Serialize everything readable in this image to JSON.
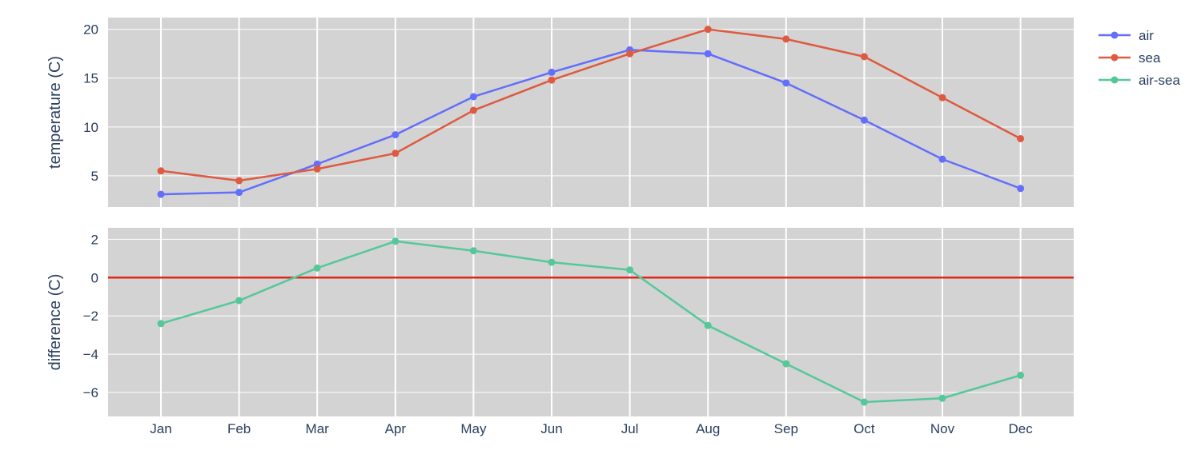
{
  "colors": {
    "plot_bg": "#d3d3d3",
    "grid": "#ffffff",
    "text": "#2a3f5f",
    "zero_line": "#e0281a"
  },
  "chart_data": [
    {
      "type": "line",
      "panel": "top",
      "ylabel": "temperature (C)",
      "categories": [
        "Jan",
        "Feb",
        "Mar",
        "Apr",
        "May",
        "Jun",
        "Jul",
        "Aug",
        "Sep",
        "Oct",
        "Nov",
        "Dec"
      ],
      "ylim": [
        1.8,
        21.2
      ],
      "yticks": [
        5,
        10,
        15,
        20
      ],
      "grid": true,
      "series": [
        {
          "name": "air",
          "color": "#636efa",
          "values": [
            3.1,
            3.3,
            6.2,
            9.2,
            13.1,
            15.6,
            17.9,
            17.5,
            14.5,
            10.7,
            6.7,
            3.7
          ]
        },
        {
          "name": "sea",
          "color": "#de5a40",
          "values": [
            5.5,
            4.5,
            5.7,
            7.3,
            11.7,
            14.8,
            17.5,
            20.0,
            19.0,
            17.2,
            13.0,
            8.8
          ]
        }
      ]
    },
    {
      "type": "line",
      "panel": "bottom",
      "ylabel": "difference (C)",
      "categories": [
        "Jan",
        "Feb",
        "Mar",
        "Apr",
        "May",
        "Jun",
        "Jul",
        "Aug",
        "Sep",
        "Oct",
        "Nov",
        "Dec"
      ],
      "ylim": [
        -7.25,
        2.6
      ],
      "yticks": [
        -6,
        -4,
        -2,
        0,
        2
      ],
      "ytick_labels": [
        "−6",
        "−4",
        "−2",
        "0",
        "2"
      ],
      "grid": true,
      "reference_line": {
        "y": 0
      },
      "series": [
        {
          "name": "air-sea",
          "color": "#55c89a",
          "values": [
            -2.4,
            -1.2,
            0.5,
            1.9,
            1.4,
            0.8,
            0.4,
            -2.5,
            -4.5,
            -6.5,
            -6.3,
            -5.1
          ]
        }
      ]
    }
  ],
  "legend": {
    "position": "top-right",
    "items": [
      {
        "label": "air",
        "color": "#636efa"
      },
      {
        "label": "sea",
        "color": "#de5a40"
      },
      {
        "label": "air-sea",
        "color": "#55c89a"
      }
    ]
  }
}
